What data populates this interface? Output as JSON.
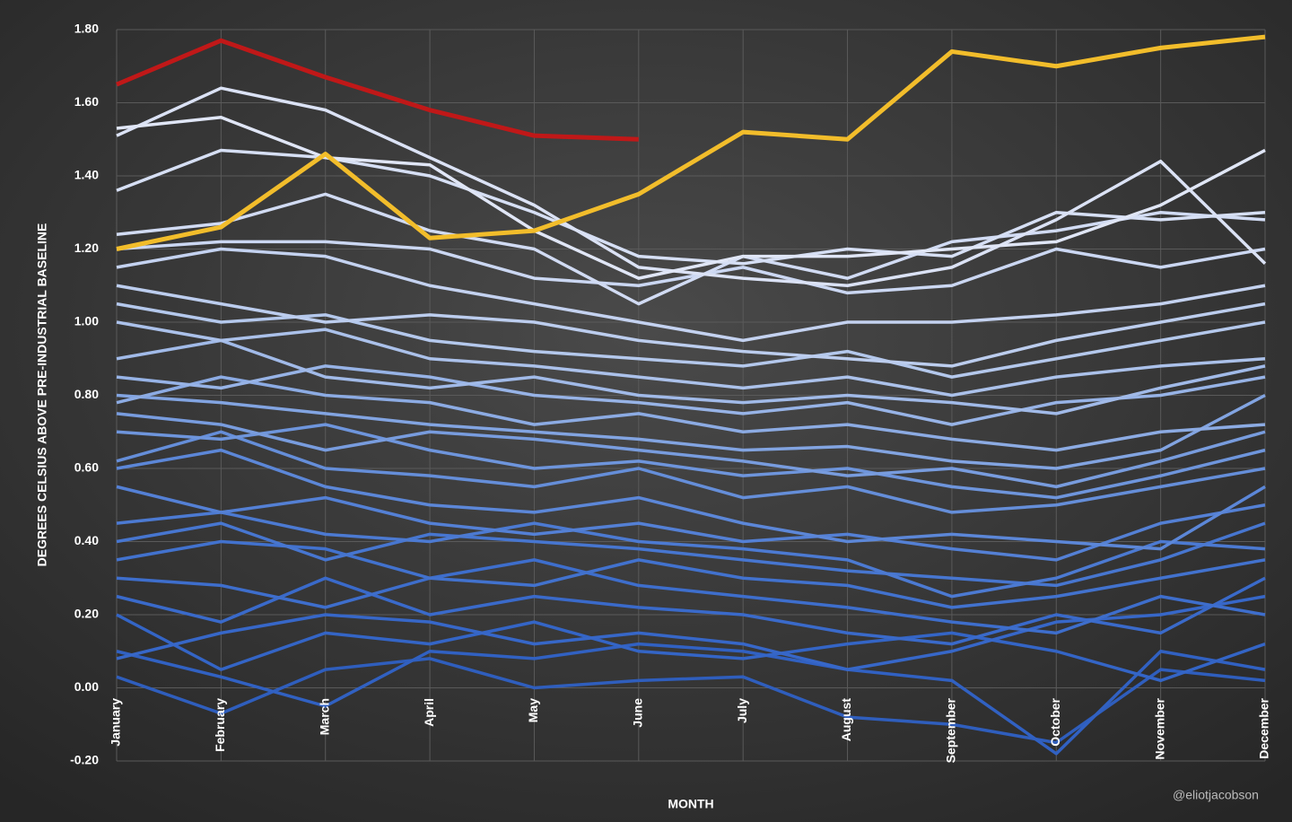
{
  "chart_data": {
    "type": "line",
    "y_label": "DEGREES CELSIUS ABOVE PRE-INDUSTRIAL  BASELINE",
    "x_label": "MONTH",
    "annotation": "@eliotjacobson",
    "categories": [
      "January",
      "February",
      "March",
      "April",
      "May",
      "June",
      "July",
      "August",
      "September",
      "October",
      "November",
      "December"
    ],
    "ylim": [
      -0.2,
      1.8
    ],
    "yticks": [
      {
        "value": -0.2,
        "label": "-0.20"
      },
      {
        "value": 0,
        "label": "0.00"
      },
      {
        "value": 0.2,
        "label": "0.20"
      },
      {
        "value": 0.4,
        "label": "0.40"
      },
      {
        "value": 0.6,
        "label": "0.60"
      },
      {
        "value": 0.8,
        "label": "0.80"
      },
      {
        "value": 1,
        "label": "1.00"
      },
      {
        "value": 1.2,
        "label": "1.20"
      },
      {
        "value": 1.4,
        "label": "1.40"
      },
      {
        "value": 1.6,
        "label": "1.60"
      },
      {
        "value": 1.8,
        "label": "1.80"
      }
    ],
    "grid": true,
    "series": [
      {
        "color": "#2f5ebd",
        "values": [
          0.03,
          -0.07,
          0.05,
          0.08,
          0.0,
          0.02,
          0.03,
          -0.08,
          -0.1,
          -0.15,
          0.05,
          0.02
        ]
      },
      {
        "color": "#3161c2",
        "values": [
          0.1,
          0.03,
          -0.05,
          0.1,
          0.08,
          0.12,
          0.1,
          0.05,
          0.02,
          -0.18,
          0.1,
          0.05
        ]
      },
      {
        "color": "#3465c6",
        "values": [
          0.2,
          0.05,
          0.15,
          0.12,
          0.18,
          0.1,
          0.08,
          0.12,
          0.15,
          0.1,
          0.02,
          0.12
        ]
      },
      {
        "color": "#3767c8",
        "values": [
          0.08,
          0.15,
          0.2,
          0.18,
          0.12,
          0.15,
          0.12,
          0.05,
          0.1,
          0.18,
          0.2,
          0.25
        ]
      },
      {
        "color": "#3a6aca",
        "values": [
          0.25,
          0.18,
          0.3,
          0.2,
          0.25,
          0.22,
          0.2,
          0.15,
          0.12,
          0.2,
          0.15,
          0.3
        ]
      },
      {
        "color": "#3e6ecc",
        "values": [
          0.3,
          0.28,
          0.22,
          0.3,
          0.35,
          0.28,
          0.25,
          0.22,
          0.18,
          0.15,
          0.25,
          0.2
        ]
      },
      {
        "color": "#4272ce",
        "values": [
          0.35,
          0.4,
          0.38,
          0.3,
          0.28,
          0.35,
          0.3,
          0.28,
          0.22,
          0.25,
          0.3,
          0.35
        ]
      },
      {
        "color": "#4776d0",
        "values": [
          0.4,
          0.45,
          0.35,
          0.42,
          0.4,
          0.38,
          0.35,
          0.32,
          0.3,
          0.28,
          0.35,
          0.45
        ]
      },
      {
        "color": "#4c7ad2",
        "values": [
          0.45,
          0.48,
          0.42,
          0.4,
          0.45,
          0.4,
          0.38,
          0.35,
          0.25,
          0.3,
          0.4,
          0.38
        ]
      },
      {
        "color": "#5480d5",
        "values": [
          0.55,
          0.48,
          0.52,
          0.45,
          0.42,
          0.45,
          0.4,
          0.42,
          0.38,
          0.35,
          0.45,
          0.5
        ]
      },
      {
        "color": "#5c87d8",
        "values": [
          0.6,
          0.65,
          0.55,
          0.5,
          0.48,
          0.52,
          0.45,
          0.4,
          0.42,
          0.4,
          0.38,
          0.55
        ]
      },
      {
        "color": "#658ed9",
        "values": [
          0.62,
          0.7,
          0.6,
          0.58,
          0.55,
          0.6,
          0.52,
          0.55,
          0.48,
          0.5,
          0.55,
          0.6
        ]
      },
      {
        "color": "#6e95dc",
        "values": [
          0.7,
          0.68,
          0.72,
          0.65,
          0.6,
          0.62,
          0.58,
          0.6,
          0.55,
          0.52,
          0.58,
          0.65
        ]
      },
      {
        "color": "#789cde",
        "values": [
          0.75,
          0.72,
          0.65,
          0.7,
          0.68,
          0.65,
          0.62,
          0.58,
          0.6,
          0.55,
          0.62,
          0.7
        ]
      },
      {
        "color": "#82a4e1",
        "values": [
          0.8,
          0.78,
          0.75,
          0.72,
          0.7,
          0.68,
          0.65,
          0.66,
          0.62,
          0.6,
          0.65,
          0.8
        ]
      },
      {
        "color": "#8cabe3",
        "values": [
          0.78,
          0.85,
          0.8,
          0.78,
          0.72,
          0.75,
          0.7,
          0.72,
          0.68,
          0.65,
          0.7,
          0.72
        ]
      },
      {
        "color": "#97b3e6",
        "values": [
          0.85,
          0.82,
          0.88,
          0.85,
          0.8,
          0.78,
          0.75,
          0.78,
          0.72,
          0.78,
          0.8,
          0.85
        ]
      },
      {
        "color": "#a1bae8",
        "values": [
          0.9,
          0.95,
          0.85,
          0.82,
          0.85,
          0.8,
          0.78,
          0.8,
          0.78,
          0.75,
          0.82,
          0.88
        ]
      },
      {
        "color": "#abc1ea",
        "values": [
          1.0,
          0.95,
          0.98,
          0.9,
          0.88,
          0.85,
          0.82,
          0.85,
          0.8,
          0.85,
          0.88,
          0.9
        ]
      },
      {
        "color": "#b4c8ec",
        "values": [
          1.05,
          1.0,
          1.02,
          0.95,
          0.92,
          0.9,
          0.88,
          0.92,
          0.85,
          0.9,
          0.95,
          1.0
        ]
      },
      {
        "color": "#bccdee",
        "values": [
          1.1,
          1.05,
          1.0,
          1.02,
          1.0,
          0.95,
          0.92,
          0.9,
          0.88,
          0.95,
          1.0,
          1.05
        ]
      },
      {
        "color": "#c4d2f0",
        "values": [
          1.15,
          1.2,
          1.18,
          1.1,
          1.05,
          1.0,
          0.95,
          1.0,
          1.0,
          1.02,
          1.05,
          1.1
        ]
      },
      {
        "color": "#cbd7f2",
        "values": [
          1.2,
          1.22,
          1.22,
          1.2,
          1.12,
          1.1,
          1.15,
          1.08,
          1.1,
          1.2,
          1.15,
          1.2
        ]
      },
      {
        "color": "#d1dbf3",
        "values": [
          1.24,
          1.27,
          1.35,
          1.25,
          1.2,
          1.05,
          1.18,
          1.12,
          1.22,
          1.25,
          1.3,
          1.28
        ]
      },
      {
        "color": "#d6dff4",
        "values": [
          1.36,
          1.47,
          1.45,
          1.4,
          1.3,
          1.18,
          1.16,
          1.2,
          1.18,
          1.3,
          1.28,
          1.3
        ]
      },
      {
        "color": "#dbe2f5",
        "values": [
          1.51,
          1.64,
          1.58,
          1.45,
          1.32,
          1.15,
          1.12,
          1.1,
          1.15,
          1.28,
          1.44,
          1.16
        ]
      },
      {
        "color": "#e0e6f6",
        "values": [
          1.53,
          1.56,
          1.45,
          1.43,
          1.25,
          1.12,
          1.18,
          1.18,
          1.2,
          1.22,
          1.32,
          1.47
        ]
      },
      {
        "color": "#f2bd2b",
        "values": [
          1.2,
          1.26,
          1.46,
          1.23,
          1.25,
          1.35,
          1.52,
          1.5,
          1.74,
          1.7,
          1.75,
          1.78
        ]
      },
      {
        "color": "#c01818",
        "values": [
          1.65,
          1.77,
          1.67,
          1.58,
          1.51,
          1.5,
          null,
          null,
          null,
          null,
          null,
          null
        ]
      }
    ]
  }
}
